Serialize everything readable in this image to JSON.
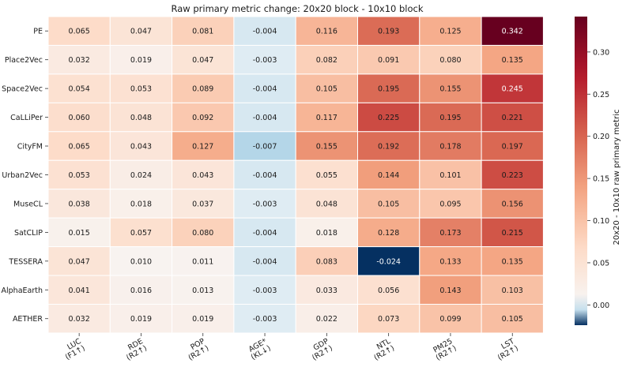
{
  "chart_data": {
    "type": "heatmap",
    "title": "Raw primary metric change: 20x20 block - 10x10 block",
    "rows": [
      "PE",
      "Place2Vec",
      "Space2Vec",
      "CaLLiPer",
      "CityFM",
      "Urban2Vec",
      "MuseCL",
      "SatCLIP",
      "TESSERA",
      "AlphaEarth",
      "AETHER"
    ],
    "columns": [
      {
        "name": "LUC",
        "metric": "(F1↑)"
      },
      {
        "name": "RDE",
        "metric": "(R2↑)"
      },
      {
        "name": "POP",
        "metric": "(R2↑)"
      },
      {
        "name": "AGE*",
        "metric": "(KL↓)"
      },
      {
        "name": "GDP",
        "metric": "(R2↑)"
      },
      {
        "name": "NTL",
        "metric": "(R2↑)"
      },
      {
        "name": "PM25",
        "metric": "(R2↑)"
      },
      {
        "name": "LST",
        "metric": "(R2↑)"
      }
    ],
    "values": [
      [
        "0.065",
        "0.047",
        "0.081",
        "-0.004",
        "0.116",
        "0.193",
        "0.125",
        "0.342"
      ],
      [
        "0.032",
        "0.019",
        "0.047",
        "-0.003",
        "0.082",
        "0.091",
        "0.080",
        "0.135"
      ],
      [
        "0.054",
        "0.053",
        "0.089",
        "-0.004",
        "0.105",
        "0.195",
        "0.155",
        "0.245"
      ],
      [
        "0.060",
        "0.048",
        "0.092",
        "-0.004",
        "0.117",
        "0.225",
        "0.195",
        "0.221"
      ],
      [
        "0.065",
        "0.043",
        "0.127",
        "-0.007",
        "0.155",
        "0.192",
        "0.178",
        "0.197"
      ],
      [
        "0.053",
        "0.024",
        "0.043",
        "-0.004",
        "0.055",
        "0.144",
        "0.101",
        "0.223"
      ],
      [
        "0.038",
        "0.018",
        "0.037",
        "-0.003",
        "0.048",
        "0.105",
        "0.095",
        "0.156"
      ],
      [
        "0.015",
        "0.057",
        "0.080",
        "-0.004",
        "0.018",
        "0.128",
        "0.173",
        "0.215"
      ],
      [
        "0.047",
        "0.010",
        "0.011",
        "-0.004",
        "0.083",
        "-0.024",
        "0.133",
        "0.135"
      ],
      [
        "0.041",
        "0.016",
        "0.013",
        "-0.003",
        "0.033",
        "0.056",
        "0.143",
        "0.103"
      ],
      [
        "0.032",
        "0.019",
        "0.019",
        "-0.003",
        "0.022",
        "0.073",
        "0.099",
        "0.105"
      ]
    ],
    "colorbar": {
      "label": "20x20 - 10x10 raw primary metric",
      "range": [
        -0.024,
        0.342
      ],
      "ticks": [
        "0.00",
        "0.05",
        "0.10",
        "0.15",
        "0.20",
        "0.25",
        "0.30"
      ],
      "colormap": "RdBu_r"
    }
  }
}
